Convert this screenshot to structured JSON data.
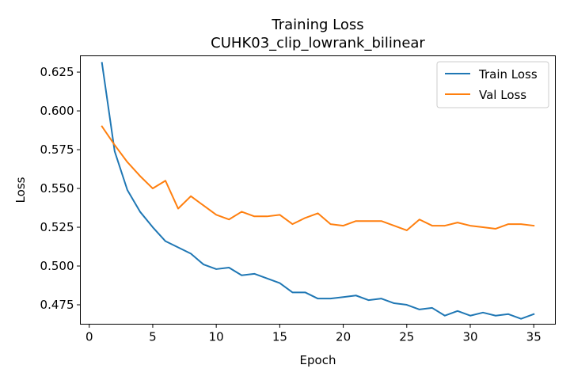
{
  "chart_data": {
    "type": "line",
    "title": "Training Loss",
    "subtitle": "CUHK03_clip_lowrank_bilinear",
    "xlabel": "Epoch",
    "ylabel": "Loss",
    "xlim": [
      -0.7,
      36.7
    ],
    "ylim": [
      0.4625,
      0.6355
    ],
    "xticks": [
      0,
      5,
      10,
      15,
      20,
      25,
      30,
      35
    ],
    "xtick_labels": [
      "0",
      "5",
      "10",
      "15",
      "20",
      "25",
      "30",
      "35"
    ],
    "yticks": [
      0.475,
      0.5,
      0.525,
      0.55,
      0.575,
      0.6,
      0.625
    ],
    "ytick_labels": [
      "0.475",
      "0.500",
      "0.525",
      "0.550",
      "0.575",
      "0.600",
      "0.625"
    ],
    "grid": false,
    "legend_position": "top-right",
    "x": [
      1,
      2,
      3,
      4,
      5,
      6,
      7,
      8,
      9,
      10,
      11,
      12,
      13,
      14,
      15,
      16,
      17,
      18,
      19,
      20,
      21,
      22,
      23,
      24,
      25,
      26,
      27,
      28,
      29,
      30,
      31,
      32,
      33,
      34,
      35
    ],
    "series": [
      {
        "name": "Train Loss",
        "color": "#1f77b4",
        "values": [
          0.631,
          0.574,
          0.549,
          0.535,
          0.525,
          0.516,
          0.512,
          0.508,
          0.501,
          0.498,
          0.499,
          0.494,
          0.495,
          0.492,
          0.489,
          0.483,
          0.483,
          0.479,
          0.479,
          0.48,
          0.481,
          0.478,
          0.479,
          0.476,
          0.475,
          0.472,
          0.473,
          0.468,
          0.471,
          0.468,
          0.47,
          0.468,
          0.469,
          0.466,
          0.469
        ]
      },
      {
        "name": "Val Loss",
        "color": "#ff7f0e",
        "values": [
          0.59,
          0.578,
          0.567,
          0.558,
          0.55,
          0.555,
          0.537,
          0.545,
          0.539,
          0.533,
          0.53,
          0.535,
          0.532,
          0.532,
          0.533,
          0.527,
          0.531,
          0.534,
          0.527,
          0.526,
          0.529,
          0.529,
          0.529,
          0.526,
          0.523,
          0.53,
          0.526,
          0.526,
          0.528,
          0.526,
          0.525,
          0.524,
          0.527,
          0.527,
          0.526
        ]
      }
    ]
  }
}
